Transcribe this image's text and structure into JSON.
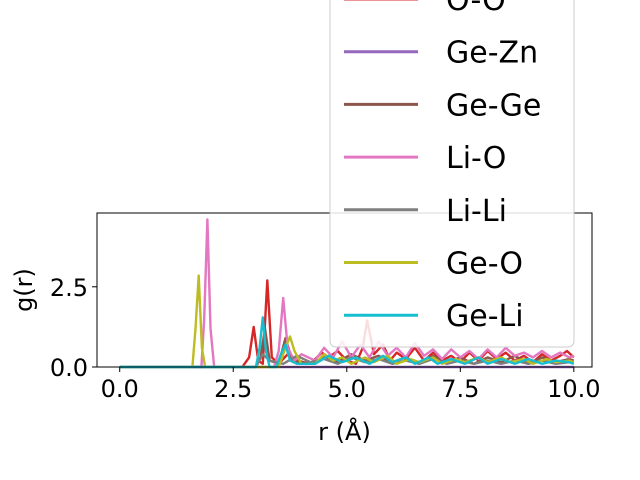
{
  "chart_data": {
    "type": "line",
    "title": "",
    "xlabel": "r (Å)",
    "ylabel": "g(r)",
    "xlim": [
      -0.5,
      10.4
    ],
    "ylim": [
      0,
      4.8
    ],
    "x_ticks": [
      0.0,
      2.5,
      5.0,
      7.5,
      10.0
    ],
    "x_tick_labels": [
      "0.0",
      "2.5",
      "5.0",
      "7.5",
      "10.0"
    ],
    "y_ticks": [
      0.0,
      2.5
    ],
    "y_tick_labels": [
      "0.0",
      "2.5"
    ],
    "grid": false,
    "legend_position": "upper-right (overflowing above plot)",
    "series": [
      {
        "name": "O-O",
        "color": "#d62728",
        "points": [
          [
            0,
            0
          ],
          [
            2.7,
            0
          ],
          [
            2.85,
            0.3
          ],
          [
            2.95,
            1.25
          ],
          [
            3.05,
            0.2
          ],
          [
            3.15,
            0.1
          ],
          [
            3.25,
            2.7
          ],
          [
            3.35,
            0.3
          ],
          [
            3.5,
            0.1
          ],
          [
            3.7,
            0.4
          ],
          [
            3.9,
            0.2
          ],
          [
            4.2,
            0.1
          ],
          [
            4.45,
            0.45
          ],
          [
            4.6,
            0.3
          ],
          [
            4.8,
            0.5
          ],
          [
            5.0,
            0.2
          ],
          [
            5.2,
            0.1
          ],
          [
            5.35,
            0.6
          ],
          [
            5.45,
            1.45
          ],
          [
            5.6,
            0.4
          ],
          [
            5.8,
            0.7
          ],
          [
            5.95,
            0.2
          ],
          [
            6.1,
            0.45
          ],
          [
            6.3,
            0.25
          ],
          [
            6.5,
            0.6
          ],
          [
            6.7,
            0.2
          ],
          [
            6.9,
            0.45
          ],
          [
            7.1,
            0.2
          ],
          [
            7.3,
            0.35
          ],
          [
            7.5,
            0.15
          ],
          [
            7.7,
            0.45
          ],
          [
            7.9,
            0.2
          ],
          [
            8.1,
            0.5
          ],
          [
            8.3,
            0.25
          ],
          [
            8.5,
            0.45
          ],
          [
            8.7,
            0.2
          ],
          [
            8.9,
            0.35
          ],
          [
            9.1,
            0.15
          ],
          [
            9.3,
            0.4
          ],
          [
            9.5,
            0.2
          ],
          [
            9.7,
            0.35
          ],
          [
            9.85,
            0.5
          ],
          [
            10.0,
            0.3
          ]
        ]
      },
      {
        "name": "Ge-Zn",
        "color": "#9467bd",
        "points": [
          [
            0,
            0
          ],
          [
            10.0,
            0
          ]
        ]
      },
      {
        "name": "Ge-Ge",
        "color": "#8c564b",
        "points": [
          [
            0,
            0
          ],
          [
            3.0,
            0
          ],
          [
            3.1,
            0.3
          ],
          [
            3.2,
            1.2
          ],
          [
            3.3,
            0.2
          ],
          [
            3.5,
            0.1
          ],
          [
            3.65,
            0.9
          ],
          [
            3.8,
            0.2
          ],
          [
            4.2,
            0.1
          ],
          [
            4.5,
            0.3
          ],
          [
            4.8,
            0.15
          ],
          [
            5.1,
            0.4
          ],
          [
            5.4,
            0.2
          ],
          [
            5.7,
            0.35
          ],
          [
            6.0,
            0.15
          ],
          [
            6.3,
            0.3
          ],
          [
            6.6,
            0.1
          ],
          [
            6.9,
            0.35
          ],
          [
            7.2,
            0.15
          ],
          [
            7.5,
            0.3
          ],
          [
            7.8,
            0.1
          ],
          [
            8.1,
            0.3
          ],
          [
            8.4,
            0.15
          ],
          [
            8.7,
            0.35
          ],
          [
            9.0,
            0.1
          ],
          [
            9.3,
            0.3
          ],
          [
            9.6,
            0.15
          ],
          [
            9.9,
            0.25
          ],
          [
            10.0,
            0.2
          ]
        ]
      },
      {
        "name": "Li-O",
        "color": "#e377c2",
        "points": [
          [
            0,
            0
          ],
          [
            1.8,
            0
          ],
          [
            1.86,
            1.5
          ],
          [
            1.93,
            4.6
          ],
          [
            2.0,
            1.2
          ],
          [
            2.08,
            0
          ],
          [
            3.4,
            0
          ],
          [
            3.5,
            0.5
          ],
          [
            3.6,
            2.15
          ],
          [
            3.7,
            0.6
          ],
          [
            3.85,
            0.2
          ],
          [
            4.0,
            0.4
          ],
          [
            4.3,
            0.2
          ],
          [
            4.5,
            0.6
          ],
          [
            4.7,
            0.3
          ],
          [
            4.9,
            0.8
          ],
          [
            5.1,
            0.3
          ],
          [
            5.3,
            0.7
          ],
          [
            5.5,
            0.3
          ],
          [
            5.7,
            0.8
          ],
          [
            5.9,
            0.35
          ],
          [
            6.1,
            0.6
          ],
          [
            6.3,
            0.3
          ],
          [
            6.5,
            0.75
          ],
          [
            6.7,
            0.35
          ],
          [
            6.9,
            0.55
          ],
          [
            7.1,
            0.25
          ],
          [
            7.3,
            0.55
          ],
          [
            7.5,
            0.3
          ],
          [
            7.7,
            0.5
          ],
          [
            7.9,
            0.25
          ],
          [
            8.1,
            0.55
          ],
          [
            8.3,
            0.3
          ],
          [
            8.5,
            0.6
          ],
          [
            8.7,
            0.35
          ],
          [
            8.9,
            0.45
          ],
          [
            9.1,
            0.3
          ],
          [
            9.3,
            0.5
          ],
          [
            9.5,
            0.3
          ],
          [
            9.7,
            0.45
          ],
          [
            9.9,
            0.3
          ],
          [
            10.0,
            0.35
          ]
        ]
      },
      {
        "name": "Li-Li",
        "color": "#7f7f7f",
        "points": [
          [
            0,
            0
          ],
          [
            3.0,
            0
          ],
          [
            3.15,
            0.4
          ],
          [
            3.3,
            0.2
          ],
          [
            3.6,
            0.1
          ],
          [
            3.9,
            0.35
          ],
          [
            4.2,
            0.15
          ],
          [
            4.5,
            0.25
          ],
          [
            4.8,
            0.1
          ],
          [
            5.1,
            0.3
          ],
          [
            5.4,
            0.15
          ],
          [
            5.7,
            0.25
          ],
          [
            6.0,
            0.1
          ],
          [
            6.3,
            0.2
          ],
          [
            6.6,
            0.1
          ],
          [
            6.9,
            0.25
          ],
          [
            7.2,
            0.1
          ],
          [
            7.5,
            0.2
          ],
          [
            7.8,
            0.1
          ],
          [
            8.1,
            0.2
          ],
          [
            8.4,
            0.1
          ],
          [
            8.7,
            0.2
          ],
          [
            9.0,
            0.1
          ],
          [
            9.3,
            0.2
          ],
          [
            9.6,
            0.1
          ],
          [
            9.9,
            0.15
          ],
          [
            10.0,
            0.1
          ]
        ]
      },
      {
        "name": "Ge-O",
        "color": "#bcbd22",
        "points": [
          [
            0,
            0
          ],
          [
            1.6,
            0
          ],
          [
            1.67,
            1.2
          ],
          [
            1.74,
            2.85
          ],
          [
            1.81,
            0.6
          ],
          [
            1.88,
            0
          ],
          [
            3.5,
            0
          ],
          [
            3.65,
            0.6
          ],
          [
            3.75,
            0.95
          ],
          [
            3.85,
            0.5
          ],
          [
            4.0,
            0.1
          ],
          [
            4.3,
            0.1
          ],
          [
            4.5,
            0.4
          ],
          [
            4.7,
            0.2
          ],
          [
            4.9,
            0.3
          ],
          [
            5.1,
            0.1
          ],
          [
            5.4,
            0.3
          ],
          [
            5.6,
            0.15
          ],
          [
            5.9,
            0.35
          ],
          [
            6.1,
            0.1
          ],
          [
            6.4,
            0.25
          ],
          [
            6.6,
            0.15
          ],
          [
            6.9,
            0.3
          ],
          [
            7.1,
            0.1
          ],
          [
            7.4,
            0.25
          ],
          [
            7.6,
            0.15
          ],
          [
            7.9,
            0.3
          ],
          [
            8.1,
            0.15
          ],
          [
            8.4,
            0.3
          ],
          [
            8.6,
            0.15
          ],
          [
            8.9,
            0.25
          ],
          [
            9.1,
            0.1
          ],
          [
            9.4,
            0.25
          ],
          [
            9.6,
            0.15
          ],
          [
            9.9,
            0.2
          ],
          [
            10.0,
            0.15
          ]
        ]
      },
      {
        "name": "Ge-Li",
        "color": "#17becf",
        "points": [
          [
            0,
            0
          ],
          [
            3.0,
            0
          ],
          [
            3.08,
            0.6
          ],
          [
            3.15,
            1.55
          ],
          [
            3.22,
            0.5
          ],
          [
            3.3,
            0
          ],
          [
            3.45,
            0
          ],
          [
            3.55,
            0.4
          ],
          [
            3.65,
            0.7
          ],
          [
            3.75,
            0.2
          ],
          [
            3.9,
            0.1
          ],
          [
            4.3,
            0.1
          ],
          [
            4.6,
            0.35
          ],
          [
            4.9,
            0.15
          ],
          [
            5.2,
            0.3
          ],
          [
            5.5,
            0.1
          ],
          [
            5.8,
            0.35
          ],
          [
            6.0,
            0.15
          ],
          [
            6.3,
            0.3
          ],
          [
            6.5,
            0.1
          ],
          [
            6.8,
            0.3
          ],
          [
            7.0,
            0.1
          ],
          [
            7.3,
            0.25
          ],
          [
            7.6,
            0.1
          ],
          [
            7.9,
            0.3
          ],
          [
            8.1,
            0.1
          ],
          [
            8.4,
            0.25
          ],
          [
            8.7,
            0.1
          ],
          [
            9.0,
            0.25
          ],
          [
            9.3,
            0.1
          ],
          [
            9.6,
            0.2
          ],
          [
            9.9,
            0.15
          ],
          [
            10.0,
            0.1
          ]
        ]
      }
    ]
  }
}
